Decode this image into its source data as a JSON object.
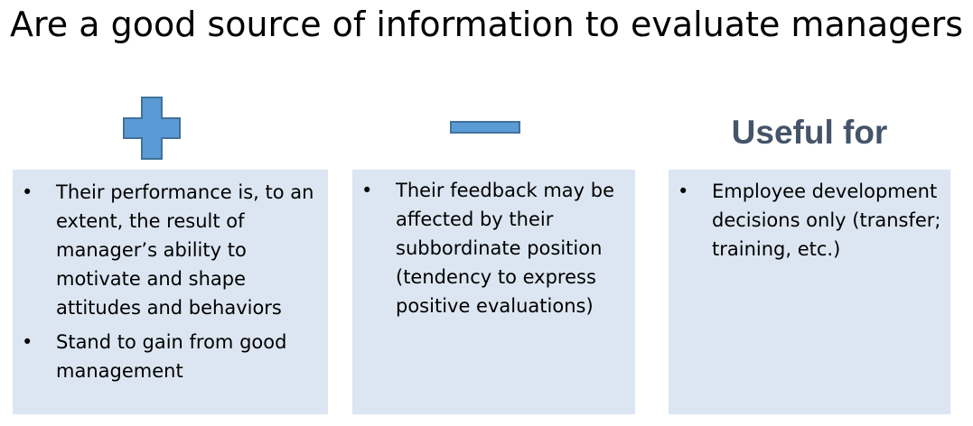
{
  "title": "Are a good source of information to evaluate managers",
  "columns": [
    {
      "icon": "plus-icon",
      "bullets": [
        "Their performance is, to an extent, the result of manager’s ability to motivate and shape attitudes and behaviors",
        "Stand to gain from good management"
      ]
    },
    {
      "icon": "minus-icon",
      "bullets": [
        "Their feedback may be affected by their subbordinate position (tendency to express positive evaluations)"
      ]
    },
    {
      "heading": "Useful for",
      "bullets": [
        "Employee development decisions only (transfer; training, etc.)"
      ]
    }
  ],
  "bullet_symbol": "•",
  "colors": {
    "icon_fill": "#5b9bd5",
    "icon_stroke": "#41719c",
    "box_fill": "#dce6f2",
    "heading": "#44546a",
    "text": "#000000"
  }
}
